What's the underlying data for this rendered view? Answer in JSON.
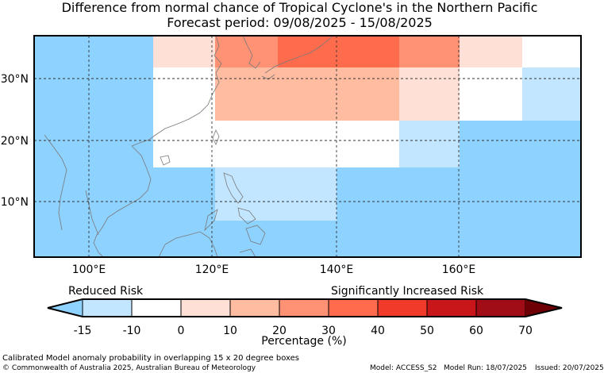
{
  "title_line1": "Difference from normal chance of Tropical Cyclone's in the Northern Pacific",
  "title_line2": "Forecast period: 09/08/2025 - 15/08/2025",
  "map": {
    "lon_ticks": [
      "100°E",
      "120°E",
      "140°E",
      "160°E"
    ],
    "lat_ticks": [
      "30°N",
      "20°N",
      "10°N"
    ],
    "colors": {
      "minus15": "#8ed2ff",
      "minus10": "#c2e6ff",
      "zero": "#ffffff",
      "plus10": "#ffe0d6",
      "plus20": "#ffbca0",
      "plus30": "#ff9174",
      "plus40": "#ff6c4d"
    }
  },
  "legend": {
    "reduced_label": "Reduced Risk",
    "increased_label": "Significantly Increased Risk",
    "unit_label": "Percentage (%)",
    "ticks": [
      "-15",
      "-10",
      "0",
      "10",
      "20",
      "30",
      "40",
      "50",
      "60",
      "70"
    ],
    "colors": [
      "#8ed2ff",
      "#c2e6ff",
      "#ffffff",
      "#ffe0d6",
      "#ffbca0",
      "#ff9174",
      "#ff6c4d",
      "#f23a2a",
      "#c8161a",
      "#a10d16",
      "#6e0005"
    ]
  },
  "footer": {
    "caption": "Calibrated Model anomaly probability in overlapping 15 x 20 degree boxes",
    "copyright": "© Commonwealth of Australia 2025, Australian Bureau of Meteorology",
    "model": "Model: ACCESS_S2",
    "model_run": "Model Run: 18/07/2025",
    "issued": "Issued: 20/07/2025"
  }
}
